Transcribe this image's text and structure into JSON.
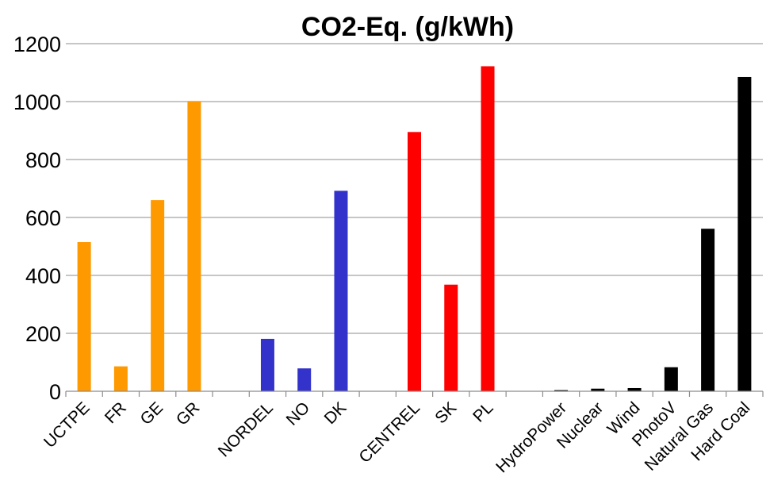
{
  "chart_data": {
    "type": "bar",
    "title": "CO2-Eq. (g/kWh)",
    "xlabel": "",
    "ylabel": "",
    "ylim": [
      0,
      1200
    ],
    "yticks": [
      "0",
      "200",
      "400",
      "600",
      "800",
      "1000",
      "1200"
    ],
    "grid": true,
    "categories": [
      "UCTPE",
      "FR",
      "GE",
      "GR",
      "",
      "NORDEL",
      "NO",
      "DK",
      "",
      "CENTREL",
      "SK",
      "PL",
      "",
      "HydroPower",
      "Nuclear",
      "Wind",
      "PhotoV",
      "Natural Gas",
      "Hard Coal"
    ],
    "values": [
      515,
      86,
      660,
      1002,
      0,
      181,
      79,
      692,
      0,
      895,
      368,
      1122,
      0,
      4,
      9,
      11,
      83,
      561,
      1085
    ],
    "colors": [
      "#ff9900",
      "#ff9900",
      "#ff9900",
      "#ff9900",
      "",
      "#3333cc",
      "#3333cc",
      "#3333cc",
      "",
      "#ff0000",
      "#ff0000",
      "#ff0000",
      "",
      "#000000",
      "#000000",
      "#000000",
      "#000000",
      "#000000",
      "#000000"
    ]
  }
}
